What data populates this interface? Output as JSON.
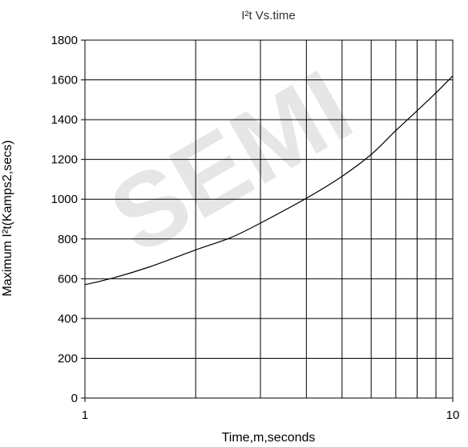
{
  "watermark": "SEMI",
  "chart_data": {
    "type": "line",
    "title": "I²t  Vs.time",
    "xlabel": "Time,m,seconds",
    "ylabel": "Maximum I²t(Kamps2,secs)",
    "x_scale": "log",
    "xlim": [
      1,
      10
    ],
    "ylim": [
      0,
      1800
    ],
    "x_ticks": [
      1,
      10
    ],
    "x_tick_labels": [
      "1",
      "10"
    ],
    "y_ticks": [
      0,
      200,
      400,
      600,
      800,
      1000,
      1200,
      1400,
      1600,
      1800
    ],
    "y_tick_labels": [
      "0",
      "200",
      "400",
      "600",
      "800",
      "1000",
      "1200",
      "1400",
      "1600",
      "1800"
    ],
    "x_gridlines": [
      1,
      2,
      3,
      4,
      5,
      6,
      7,
      8,
      9,
      10
    ],
    "grid": true,
    "series": [
      {
        "x": [
          1,
          1.2,
          1.5,
          2,
          2.5,
          3,
          4,
          5,
          6,
          7,
          8,
          9,
          10
        ],
        "y": [
          570,
          605,
          660,
          745,
          808,
          880,
          1005,
          1115,
          1225,
          1345,
          1445,
          1535,
          1620
        ],
        "color": "#000000"
      }
    ]
  }
}
